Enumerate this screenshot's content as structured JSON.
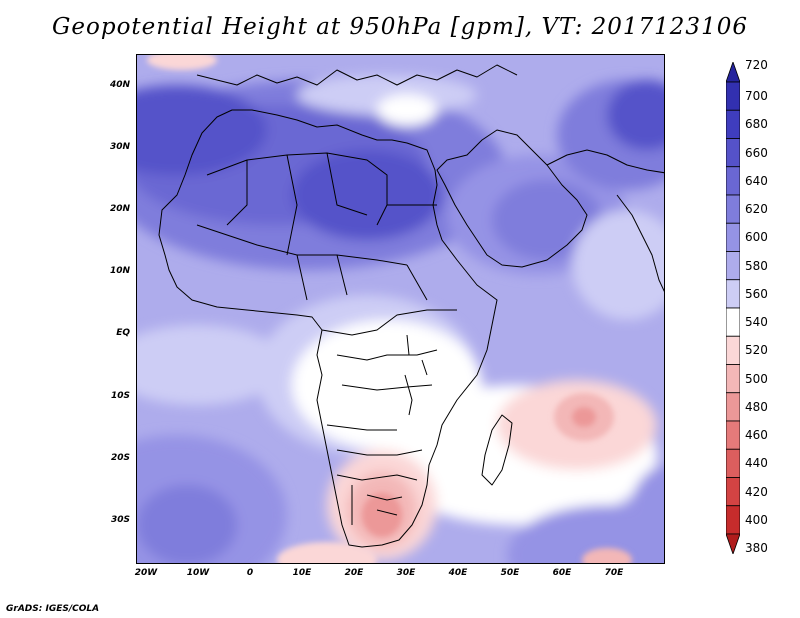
{
  "title": "Geopotential Height at 950hPa [gpm], VT: 2017123106",
  "credit": "GrADS: IGES/COLA",
  "lat_labels": [
    "40N",
    "30N",
    "20N",
    "10N",
    "EQ",
    "10S",
    "20S",
    "30S"
  ],
  "lat_values": [
    40,
    30,
    20,
    10,
    0,
    -10,
    -20,
    -30
  ],
  "lon_labels": [
    "20W",
    "10W",
    "0",
    "10E",
    "20E",
    "30E",
    "40E",
    "50E",
    "60E",
    "70E"
  ],
  "lon_values": [
    -20,
    -10,
    0,
    10,
    20,
    30,
    40,
    50,
    60,
    70
  ],
  "colorbar": {
    "levels": [
      "720",
      "700",
      "680",
      "660",
      "640",
      "620",
      "600",
      "580",
      "560",
      "540",
      "520",
      "500",
      "480",
      "460",
      "440",
      "420",
      "400",
      "380"
    ],
    "colors": [
      "#25249d",
      "#3230b0",
      "#3f3dbe",
      "#5552c9",
      "#6a67d3",
      "#7f7ddc",
      "#9593e5",
      "#aeacec",
      "#cdcdf5",
      "#ffffff",
      "#fbd7d7",
      "#f3b7b7",
      "#ec9898",
      "#e57a7a",
      "#dc5e5e",
      "#d34343",
      "#c62c2c",
      "#b01c1c"
    ]
  },
  "map": {
    "region": "Africa and Middle East",
    "lon_range": [
      -22,
      80
    ],
    "lat_range": [
      -37,
      45
    ],
    "value_unit": "gpm"
  }
}
